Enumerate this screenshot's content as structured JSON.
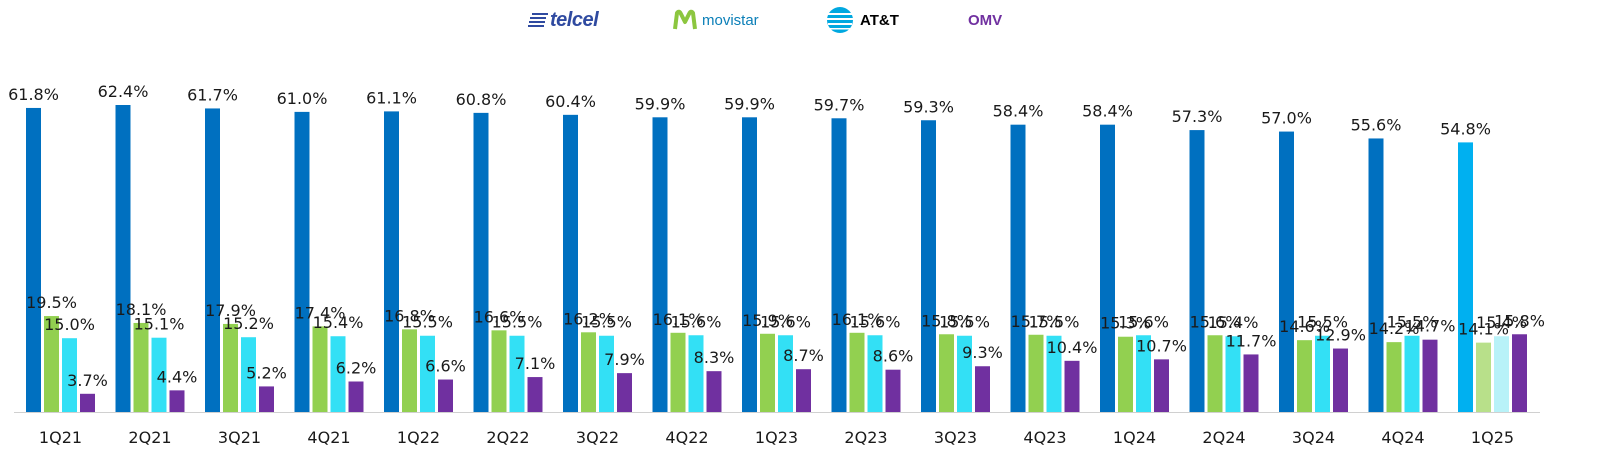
{
  "legend": {
    "telcel": "telcel",
    "movistar": "movistar",
    "att": "AT&T",
    "omv": "OMV"
  },
  "colors": {
    "telcel": "#0070c0",
    "movistar": "#92d050",
    "att": "#33e0f5",
    "omv": "#7030a0",
    "telcel_last": "#00b0f0",
    "movistar_last": "#b8e08a",
    "att_last": "#b8f2f8"
  },
  "chart_data": {
    "type": "bar",
    "categories": [
      "1Q21",
      "2Q21",
      "3Q21",
      "4Q21",
      "1Q22",
      "2Q22",
      "3Q22",
      "4Q22",
      "1Q23",
      "2Q23",
      "3Q23",
      "4Q23",
      "1Q24",
      "2Q24",
      "3Q24",
      "4Q24",
      "1Q25"
    ],
    "series": [
      {
        "name": "telcel",
        "values": [
          61.8,
          62.4,
          61.7,
          61.0,
          61.1,
          60.8,
          60.4,
          59.9,
          59.9,
          59.7,
          59.3,
          58.4,
          58.4,
          57.3,
          57.0,
          55.6,
          54.8
        ]
      },
      {
        "name": "movistar",
        "values": [
          19.5,
          18.1,
          17.9,
          17.4,
          16.8,
          16.6,
          16.2,
          16.1,
          15.9,
          16.1,
          15.8,
          15.7,
          15.3,
          15.6,
          14.6,
          14.2,
          14.1
        ]
      },
      {
        "name": "AT&T",
        "values": [
          15.0,
          15.1,
          15.2,
          15.4,
          15.5,
          15.5,
          15.5,
          15.6,
          15.6,
          15.6,
          15.5,
          15.5,
          15.6,
          15.4,
          15.5,
          15.5,
          15.4
        ]
      },
      {
        "name": "OMV",
        "values": [
          3.7,
          4.4,
          5.2,
          6.2,
          6.6,
          7.1,
          7.9,
          8.3,
          8.7,
          8.6,
          9.3,
          10.4,
          10.7,
          11.7,
          12.9,
          14.7,
          15.8
        ]
      }
    ],
    "value_suffix": "%",
    "ylim": [
      0,
      62.4
    ],
    "grid": false,
    "legend_position": "top-center"
  }
}
